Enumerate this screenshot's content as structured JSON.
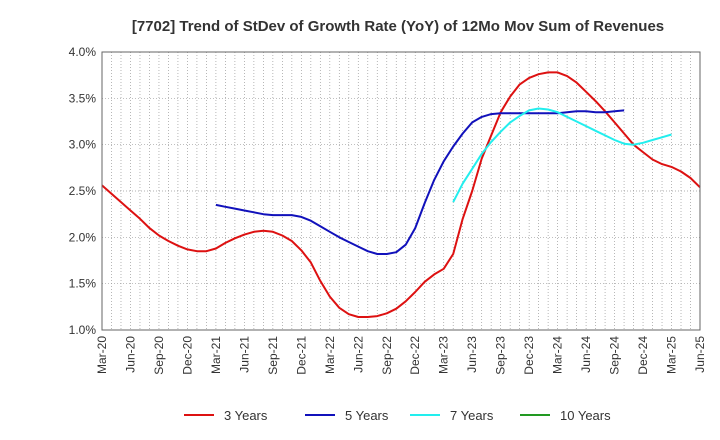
{
  "chart_data": {
    "type": "line",
    "title": "[7702]  Trend of StDev of Growth Rate (YoY) of 12Mo Mov Sum of Revenues",
    "xlabel": "",
    "ylabel": "",
    "ylim": [
      1.0,
      4.0
    ],
    "yticks": [
      "1.0%",
      "1.5%",
      "2.0%",
      "2.5%",
      "3.0%",
      "3.5%",
      "4.0%"
    ],
    "yticks_values": [
      1.0,
      1.5,
      2.0,
      2.5,
      3.0,
      3.5,
      4.0
    ],
    "xlim": [
      0,
      63
    ],
    "xticks": [
      "Mar-20",
      "Jun-20",
      "Sep-20",
      "Dec-20",
      "Mar-21",
      "Jun-21",
      "Sep-21",
      "Dec-21",
      "Mar-22",
      "Jun-22",
      "Sep-22",
      "Dec-22",
      "Mar-23",
      "Jun-23",
      "Sep-23",
      "Dec-23",
      "Mar-24",
      "Jun-24",
      "Sep-24",
      "Dec-24",
      "Mar-25",
      "Jun-25"
    ],
    "grid": true,
    "legend_position": "bottom",
    "series": [
      {
        "name": "3 Years",
        "color": "#dd1111",
        "start": 0,
        "values": [
          2.56,
          2.47,
          2.38,
          2.29,
          2.2,
          2.1,
          2.02,
          1.96,
          1.91,
          1.87,
          1.85,
          1.85,
          1.88,
          1.94,
          1.99,
          2.03,
          2.06,
          2.07,
          2.06,
          2.02,
          1.96,
          1.86,
          1.73,
          1.53,
          1.36,
          1.24,
          1.17,
          1.14,
          1.14,
          1.15,
          1.18,
          1.23,
          1.31,
          1.41,
          1.52,
          1.6,
          1.66,
          1.82,
          2.2,
          2.5,
          2.85,
          3.1,
          3.35,
          3.52,
          3.65,
          3.72,
          3.76,
          3.78,
          3.78,
          3.74,
          3.67,
          3.57,
          3.47,
          3.36,
          3.24,
          3.12,
          3.0,
          2.92,
          2.84,
          2.79,
          2.76,
          2.71,
          2.64,
          2.54
        ]
      },
      {
        "name": "5 Years",
        "color": "#1111bb",
        "start": 12,
        "values": [
          2.35,
          2.33,
          2.31,
          2.29,
          2.27,
          2.25,
          2.24,
          2.24,
          2.24,
          2.22,
          2.18,
          2.12,
          2.06,
          2.0,
          1.95,
          1.9,
          1.85,
          1.82,
          1.82,
          1.84,
          1.92,
          2.1,
          2.37,
          2.62,
          2.82,
          2.98,
          3.12,
          3.24,
          3.3,
          3.33,
          3.34,
          3.34,
          3.34,
          3.34,
          3.34,
          3.34,
          3.34,
          3.35,
          3.36,
          3.36,
          3.35,
          3.35,
          3.36,
          3.37
        ]
      },
      {
        "name": "7 Years",
        "color": "#22eeee",
        "start": 37,
        "values": [
          2.38,
          2.58,
          2.74,
          2.9,
          3.03,
          3.14,
          3.24,
          3.31,
          3.37,
          3.39,
          3.38,
          3.35,
          3.3,
          3.25,
          3.2,
          3.15,
          3.1,
          3.05,
          3.01,
          3.0,
          3.02,
          3.05,
          3.08,
          3.11
        ]
      },
      {
        "name": "10 Years",
        "color": "#229922",
        "start": 0,
        "values": []
      }
    ]
  }
}
